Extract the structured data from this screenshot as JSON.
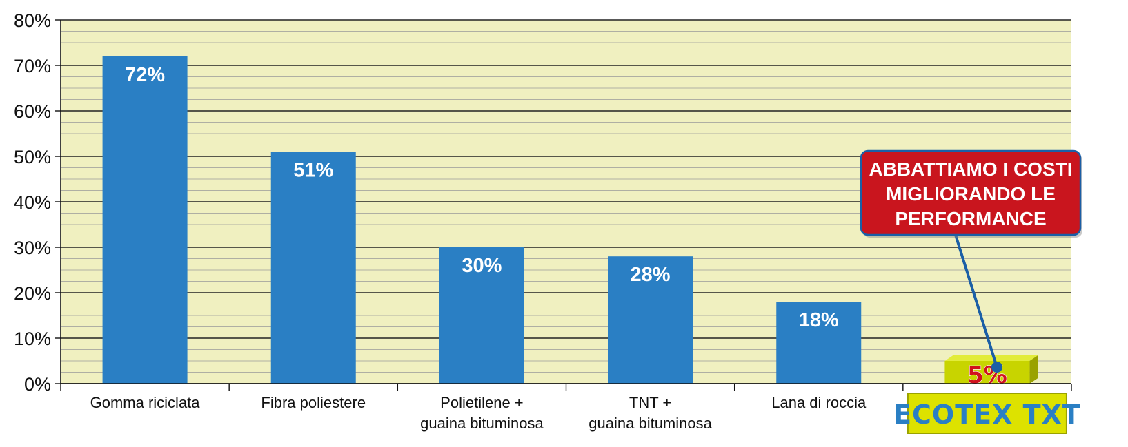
{
  "chart_data": {
    "type": "bar",
    "title": "",
    "xlabel": "",
    "ylabel": "",
    "ylim": [
      0,
      80
    ],
    "y_ticks": [
      "0%",
      "10%",
      "20%",
      "30%",
      "40%",
      "50%",
      "60%",
      "70%",
      "80%"
    ],
    "y_tick_values": [
      0,
      10,
      20,
      30,
      40,
      50,
      60,
      70,
      80
    ],
    "categories": [
      [
        "Gomma riciclata"
      ],
      [
        "Fibra poliestere"
      ],
      [
        "Polietilene +",
        "guaina bituminosa"
      ],
      [
        "TNT +",
        "guaina bituminosa"
      ],
      [
        "Lana di roccia"
      ],
      [
        "ECOTEX TXT"
      ]
    ],
    "values": [
      72,
      51,
      30,
      28,
      18,
      5
    ],
    "value_labels": [
      "72%",
      "51%",
      "30%",
      "28%",
      "18%",
      "5%"
    ],
    "highlight_index": 5,
    "grid": "horizontal",
    "colors": {
      "plot_background": "#f0f0c0",
      "bar": "#2a7fc4",
      "highlight_bar": "#c8d400",
      "highlight_value": "#d0131d",
      "grid_major": "#222222",
      "grid_minor": "#9a9a9a",
      "callout_fill": "#c9151e",
      "callout_border": "#1b5fa6",
      "logo_fill": "#dde200",
      "logo_text": "#2a7fc4",
      "connector": "#1b5fa6"
    },
    "annotation": {
      "lines": [
        "ABBATTIAMO I COSTI",
        "MIGLIORANDO LE",
        "PERFORMANCE"
      ]
    }
  }
}
